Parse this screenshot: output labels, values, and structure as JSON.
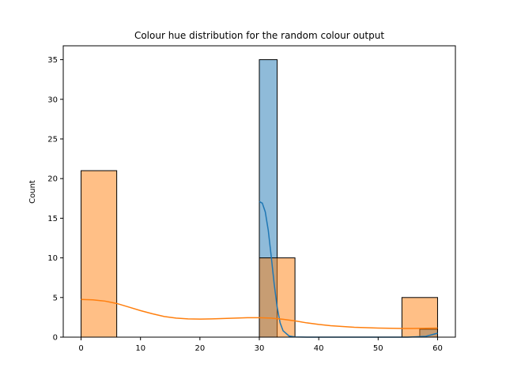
{
  "chart_data": {
    "type": "bar",
    "title": "Colour hue distribution for the random colour output",
    "xlabel": "",
    "ylabel": "Count",
    "xlim": [
      -3,
      63
    ],
    "ylim": [
      0,
      36.75
    ],
    "xticks": [
      0,
      10,
      20,
      30,
      40,
      50,
      60
    ],
    "yticks": [
      0,
      5,
      10,
      15,
      20,
      25,
      30,
      35
    ],
    "grid": false,
    "legend": "none",
    "series": [
      {
        "color": "#1f77b4",
        "bins": [
          {
            "x0": 30,
            "x1": 33,
            "count": 35
          },
          {
            "x0": 57,
            "x1": 60,
            "count": 1
          }
        ],
        "kde": {
          "x": [
            30,
            30.5,
            31,
            31.5,
            32,
            32.5,
            33,
            33.5,
            34,
            35,
            36,
            38,
            40,
            45,
            50,
            55,
            58,
            59,
            60
          ],
          "y": [
            17.1,
            16.9,
            15.8,
            13.5,
            10.2,
            6.7,
            3.8,
            1.8,
            0.8,
            0.15,
            0.03,
            0.0,
            0.0,
            0.0,
            0.0,
            0.0,
            0.1,
            0.3,
            0.5
          ]
        }
      },
      {
        "color": "#ff7f0e",
        "bins": [
          {
            "x0": 0,
            "x1": 6,
            "count": 21
          },
          {
            "x0": 30,
            "x1": 36,
            "count": 10
          },
          {
            "x0": 54,
            "x1": 60,
            "count": 5
          }
        ],
        "kde": {
          "x": [
            0,
            2,
            4,
            6,
            8,
            10,
            12,
            14,
            16,
            18,
            20,
            22,
            24,
            26,
            28,
            30,
            32,
            34,
            36,
            38,
            40,
            42,
            44,
            46,
            48,
            50,
            52,
            54,
            56,
            58,
            60
          ],
          "y": [
            4.75,
            4.7,
            4.55,
            4.25,
            3.8,
            3.35,
            2.95,
            2.6,
            2.4,
            2.3,
            2.28,
            2.3,
            2.35,
            2.4,
            2.45,
            2.45,
            2.4,
            2.25,
            2.05,
            1.8,
            1.6,
            1.45,
            1.35,
            1.25,
            1.2,
            1.15,
            1.12,
            1.1,
            1.1,
            1.12,
            1.15
          ]
        }
      }
    ]
  }
}
